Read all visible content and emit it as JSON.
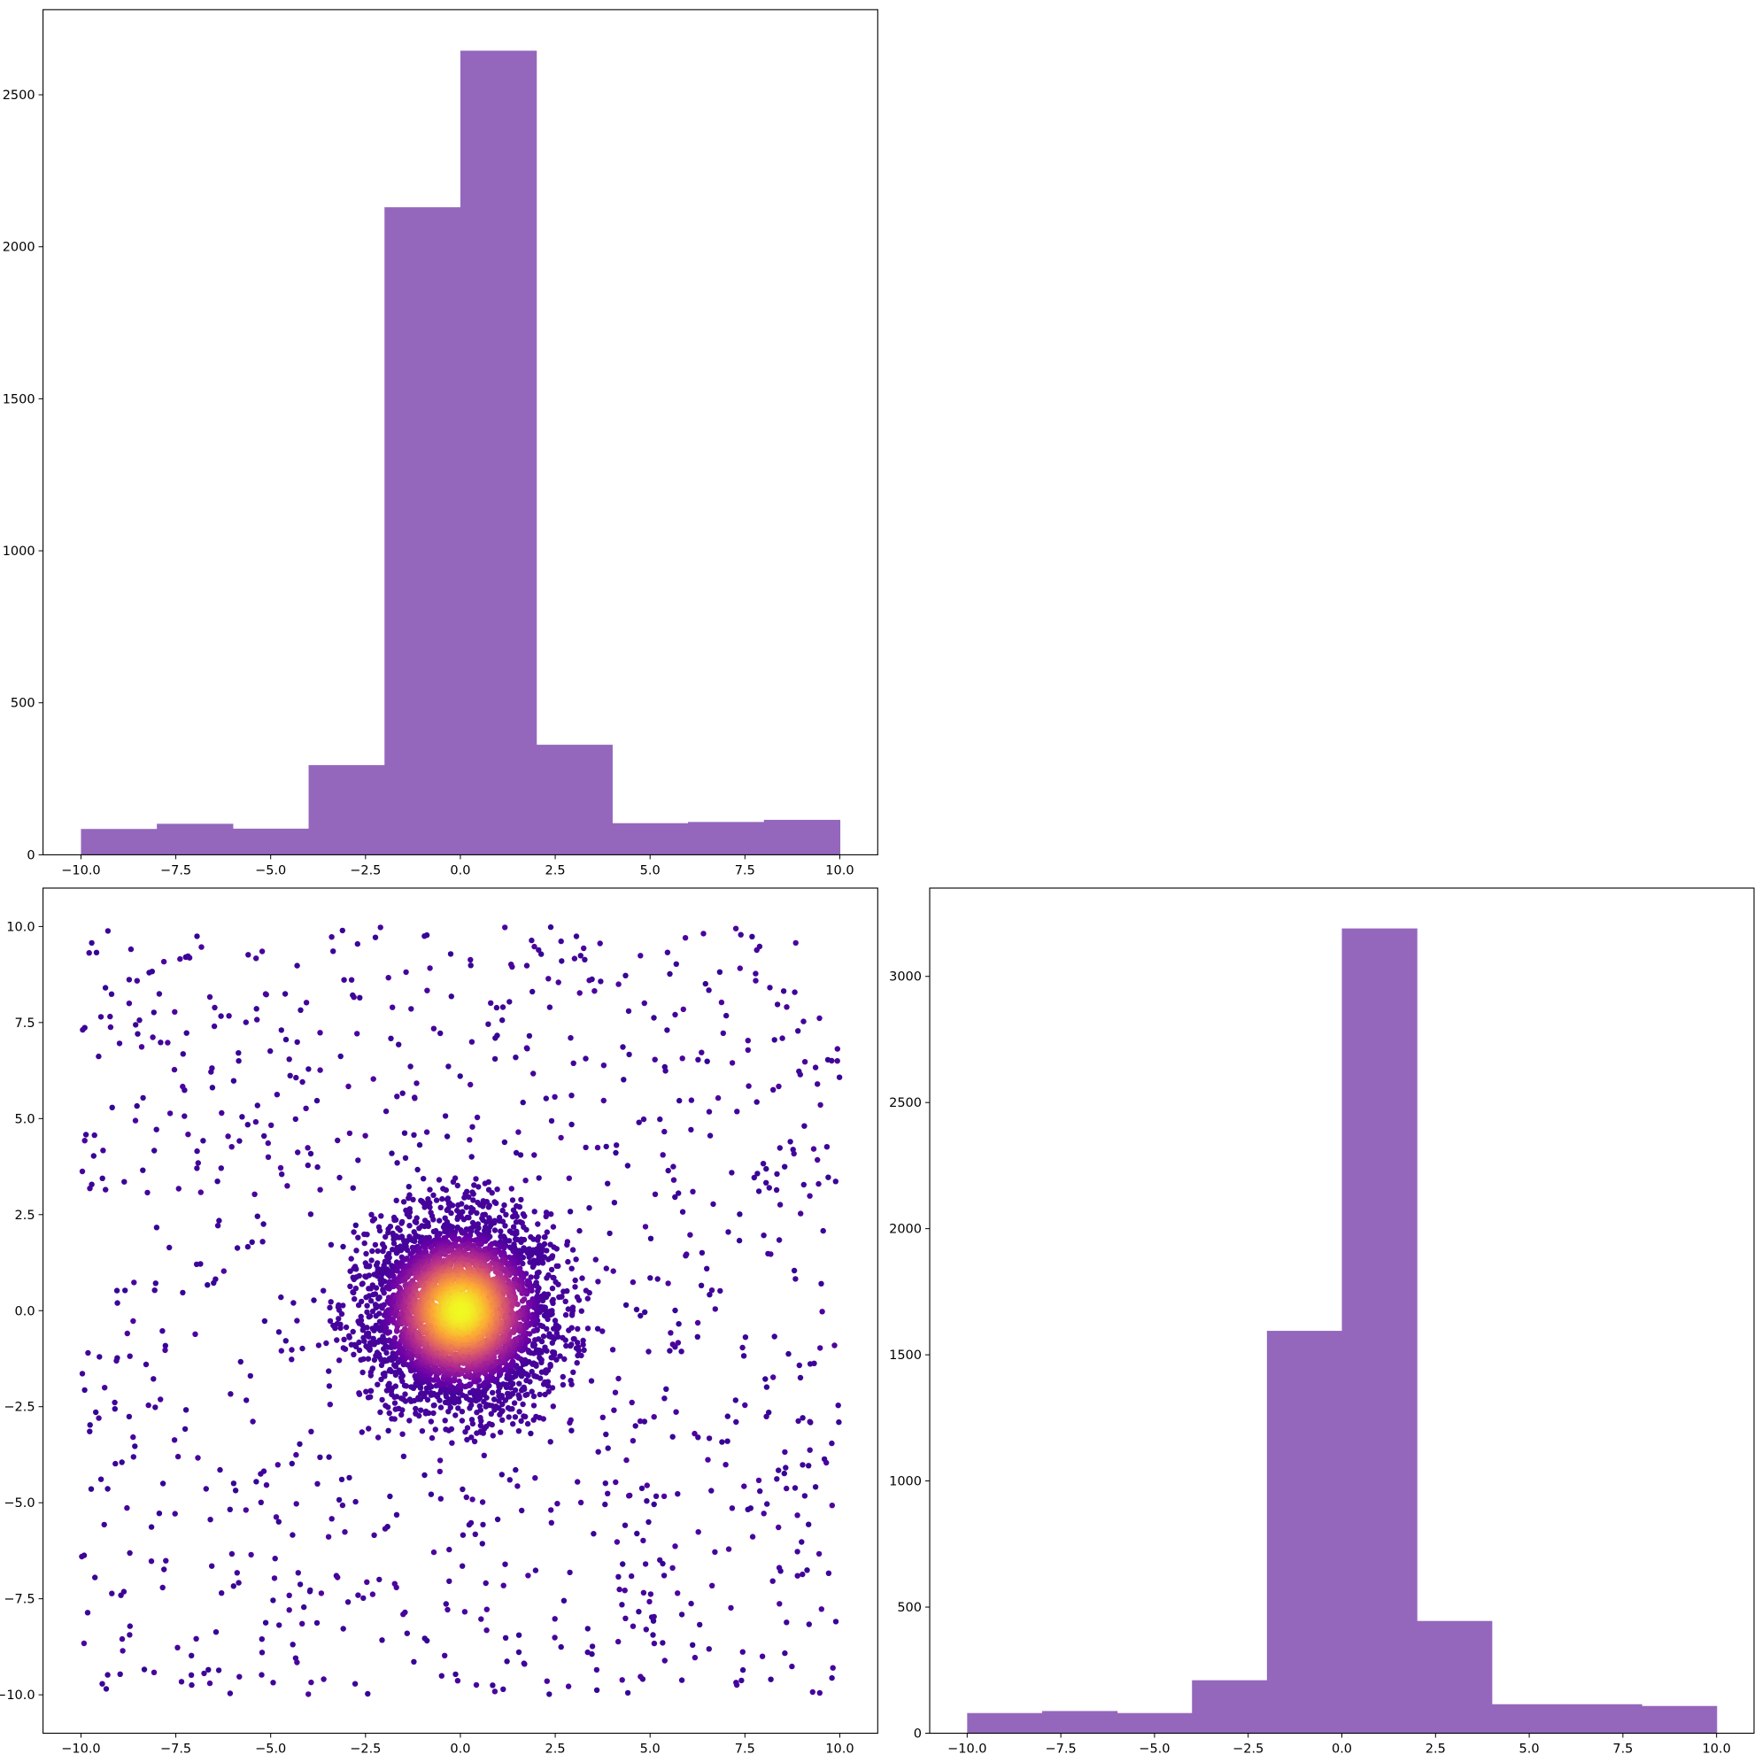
{
  "figure": {
    "colors": {
      "bar_fill": "#9467bd",
      "scatter_cmap": [
        "#0d0887",
        "#6a00a8",
        "#b12a90",
        "#e16462",
        "#fca636",
        "#f0f921"
      ],
      "axes_edge": "#000000",
      "background": "#ffffff"
    }
  },
  "chart_data": [
    {
      "type": "bar",
      "subtype": "histogram",
      "panel": "top-left",
      "title": "",
      "xlabel": "",
      "ylabel": "",
      "bin_edges": [
        -10.0,
        -8.0,
        -6.0,
        -4.0,
        -2.0,
        0.0,
        2.0,
        4.0,
        6.0,
        8.0,
        10.0
      ],
      "values": [
        85,
        102,
        86,
        295,
        2130,
        2645,
        362,
        104,
        108,
        115
      ],
      "xlim": [
        -11,
        11
      ],
      "ylim": [
        0,
        2780
      ],
      "x_ticks": [
        -10.0,
        -7.5,
        -5.0,
        -2.5,
        0.0,
        2.5,
        5.0,
        7.5,
        10.0
      ],
      "x_tick_labels": [
        "−10.0",
        "−7.5",
        "−5.0",
        "−2.5",
        "0.0",
        "2.5",
        "5.0",
        "7.5",
        "10.0"
      ],
      "y_ticks": [
        0,
        500,
        1000,
        1500,
        2000,
        2500
      ],
      "y_tick_labels": [
        "0",
        "500",
        "1000",
        "1500",
        "2000",
        "2500"
      ],
      "grid": false
    },
    {
      "type": "scatter",
      "panel": "bottom-left",
      "title": "",
      "xlabel": "",
      "ylabel": "",
      "description_of_points": "about 1000 points uniform over [-10,10]x[-10,10] plus about 4000 points gaussian around (0,0) within radius ~3.5, colored by density (plasma)",
      "uniform_points": {
        "count": 1000,
        "x_range": [
          -10,
          10
        ],
        "y_range": [
          -10,
          10
        ]
      },
      "cluster_points": {
        "count": 4000,
        "center": [
          0,
          0
        ],
        "sigma": 1.0,
        "max_radius": 3.5
      },
      "xlim": [
        -11,
        11
      ],
      "ylim": [
        -11,
        11
      ],
      "x_ticks": [
        -10.0,
        -7.5,
        -5.0,
        -2.5,
        0.0,
        2.5,
        5.0,
        7.5,
        10.0
      ],
      "x_tick_labels": [
        "−10.0",
        "−7.5",
        "−5.0",
        "−2.5",
        "0.0",
        "2.5",
        "5.0",
        "7.5",
        "10.0"
      ],
      "y_ticks": [
        -10.0,
        -7.5,
        -5.0,
        -2.5,
        0.0,
        2.5,
        5.0,
        7.5,
        10.0
      ],
      "y_tick_labels": [
        "−10.0",
        "−7.5",
        "−5.0",
        "−2.5",
        "0.0",
        "2.5",
        "5.0",
        "7.5",
        "10.0"
      ],
      "grid": false
    },
    {
      "type": "bar",
      "subtype": "histogram",
      "panel": "bottom-right",
      "title": "",
      "xlabel": "",
      "ylabel": "",
      "bin_edges": [
        -10.0,
        -8.0,
        -6.0,
        -4.0,
        -2.0,
        0.0,
        2.0,
        4.0,
        6.0,
        8.0,
        10.0
      ],
      "values": [
        80,
        88,
        80,
        210,
        1595,
        3190,
        445,
        115,
        115,
        108
      ],
      "xlim": [
        -11,
        11
      ],
      "ylim": [
        0,
        3350
      ],
      "x_ticks": [
        -10.0,
        -7.5,
        -5.0,
        -2.5,
        0.0,
        2.5,
        5.0,
        7.5,
        10.0
      ],
      "x_tick_labels": [
        "−10.0",
        "−7.5",
        "−5.0",
        "−2.5",
        "0.0",
        "2.5",
        "5.0",
        "7.5",
        "10.0"
      ],
      "y_ticks": [
        0,
        500,
        1000,
        1500,
        2000,
        2500,
        3000
      ],
      "y_tick_labels": [
        "0",
        "500",
        "1000",
        "1500",
        "2000",
        "2500",
        "3000"
      ],
      "grid": false
    }
  ]
}
